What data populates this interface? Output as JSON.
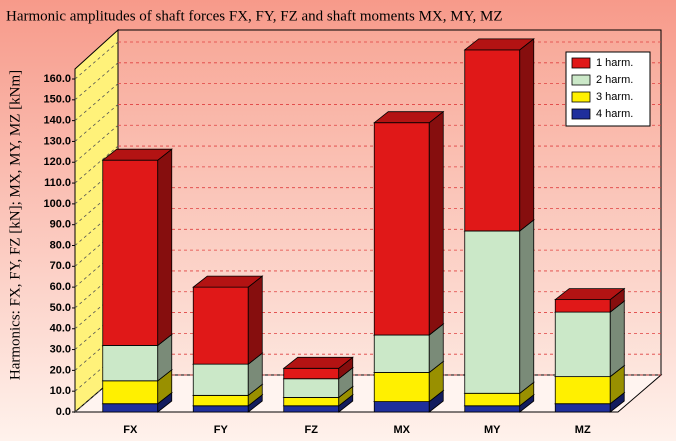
{
  "chart_data": {
    "type": "bar3d_stacked",
    "title": "Harmonic amplitudes of shaft forces FX, FY, FZ and shaft moments MX, MY, MZ",
    "y_label": "Harmonics: FX, FY, FZ [kN]; MX, MY, MZ [kNm]",
    "categories": [
      "FX",
      "FY",
      "FZ",
      "MX",
      "MY",
      "MZ"
    ],
    "series": [
      {
        "name": "4 harm.",
        "color": "#1f2f9c",
        "values": [
          4,
          3,
          3,
          5,
          3,
          4
        ]
      },
      {
        "name": "3 harm.",
        "color": "#fff000",
        "values": [
          11,
          5,
          4,
          14,
          6,
          13
        ]
      },
      {
        "name": "2 harm.",
        "color": "#cbe8c8",
        "values": [
          17,
          15,
          9,
          18,
          78,
          31
        ]
      },
      {
        "name": "1 harm.",
        "color": "#e01818",
        "values": [
          89,
          37,
          5,
          102,
          87,
          6
        ]
      }
    ],
    "ylim": [
      0,
      160
    ],
    "yticks": [
      {
        "value": 0,
        "label": "0.0"
      },
      {
        "value": 10,
        "label": "10.0"
      },
      {
        "value": 20,
        "label": "20.0"
      },
      {
        "value": 30,
        "label": "30.0"
      },
      {
        "value": 40,
        "label": "40.0"
      },
      {
        "value": 50,
        "label": "50.0"
      },
      {
        "value": 60,
        "label": "60.0"
      },
      {
        "value": 70,
        "label": "70.0"
      },
      {
        "value": 80,
        "label": "80.0"
      },
      {
        "value": 90,
        "label": "90.0"
      },
      {
        "value": 100,
        "label": "100.0"
      },
      {
        "value": 110,
        "label": "110.0"
      },
      {
        "value": 120,
        "label": "120.0"
      },
      {
        "value": 130,
        "label": "130.0"
      },
      {
        "value": 140,
        "label": "140.0"
      },
      {
        "value": 150,
        "label": "150.0"
      },
      {
        "value": 160,
        "label": "160.0"
      }
    ],
    "grid": true,
    "legend": "top-right"
  }
}
